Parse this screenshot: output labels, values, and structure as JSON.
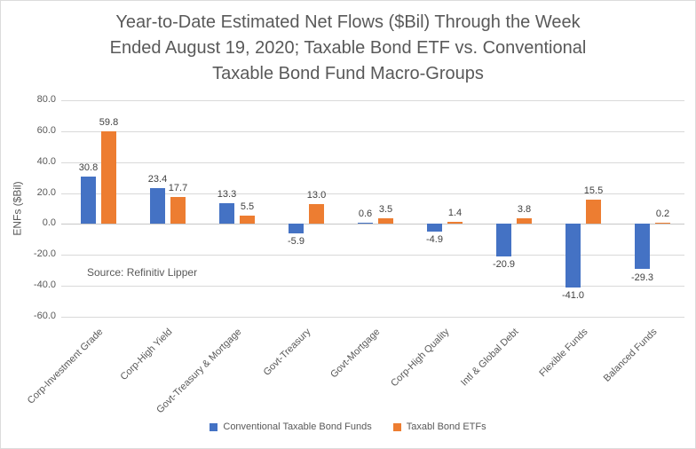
{
  "title_lines": [
    "Year-to-Date Estimated Net Flows ($Bil) Through the Week",
    "Ended August 19, 2020; Taxable Bond ETF vs. Conventional",
    "Taxable Bond Fund Macro-Groups"
  ],
  "source_note": "Source: Refinitiv Lipper",
  "chart_data": {
    "type": "bar",
    "title": "Year-to-Date Estimated Net Flows ($Bil) Through the Week Ended August 19, 2020; Taxable Bond ETF vs. Conventional Taxable Bond Fund Macro-Groups",
    "xlabel": "",
    "ylabel": "ENFs ($Bil)",
    "ylim": [
      -60,
      80
    ],
    "yticks": [
      80,
      60,
      40,
      20,
      0,
      -20,
      -40,
      -60
    ],
    "grid": true,
    "legend_position": "bottom",
    "data_label_decimals": 1,
    "categories": [
      "Corp-Investment Grade",
      "Corp-High Yield",
      "Govt-Treasury & Mortgage",
      "Govt-Treasury",
      "Govt-Mortgage",
      "Corp-High Quality",
      "Intl & Global Debt",
      "Flexible Funds",
      "Balanced Funds"
    ],
    "series": [
      {
        "name": "Conventional Taxable Bond Funds",
        "color": "#4472C4",
        "values": [
          30.8,
          23.4,
          13.3,
          -5.9,
          0.6,
          -4.9,
          -20.9,
          -41.0,
          -29.3
        ]
      },
      {
        "name": "Taxabl Bond ETFs",
        "color": "#ED7D31",
        "values": [
          59.8,
          17.7,
          5.5,
          13.0,
          3.5,
          1.4,
          3.8,
          15.5,
          0.2
        ]
      }
    ]
  }
}
